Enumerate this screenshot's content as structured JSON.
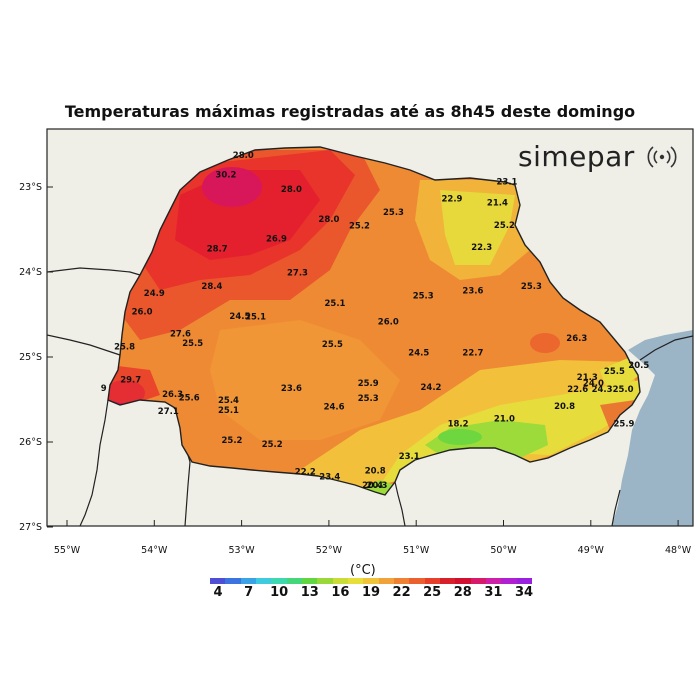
{
  "title": "Temperaturas máximas registradas até as 8h45 deste domingo",
  "logo": {
    "text": "simepar",
    "icon": "radio-waves-icon"
  },
  "map": {
    "lat_ticks": [
      "23°S",
      "24°S",
      "25°S",
      "26°S",
      "27°S"
    ],
    "lon_ticks": [
      "55°W",
      "54°W",
      "53°W",
      "52°W",
      "51°W",
      "50°W",
      "49°W",
      "48°W"
    ],
    "colors": {
      "ocean": "#9bb4c6",
      "land": "#efefe7",
      "state_hot": "#e8342a"
    }
  },
  "colorbar": {
    "unit": "(°C)",
    "ticks": [
      "4",
      "7",
      "10",
      "13",
      "16",
      "19",
      "22",
      "25",
      "28",
      "31",
      "34"
    ],
    "colors": [
      "#4f4fd6",
      "#3b73e0",
      "#3aa3e6",
      "#3ecbe0",
      "#3ed8b0",
      "#45d67a",
      "#62d640",
      "#9ad83a",
      "#c9dc38",
      "#e8de3a",
      "#f0c43a",
      "#f2a23a",
      "#ef8232",
      "#ea602e",
      "#e63f2a",
      "#d8202a",
      "#d0102e",
      "#d81a6a",
      "#cc20a8",
      "#b020d0",
      "#9a20e0"
    ]
  },
  "stations": [
    {
      "v": "28.0",
      "lon": -52.98,
      "lat": -22.66
    },
    {
      "v": "30.2",
      "lon": -53.18,
      "lat": -22.89
    },
    {
      "v": "28.0",
      "lon": -52.43,
      "lat": -23.06
    },
    {
      "v": "23.1",
      "lon": -49.96,
      "lat": -22.97
    },
    {
      "v": "22.9",
      "lon": -50.59,
      "lat": -23.17
    },
    {
      "v": "21.4",
      "lon": -50.07,
      "lat": -23.22
    },
    {
      "v": "25.3",
      "lon": -51.26,
      "lat": -23.33
    },
    {
      "v": "28.0",
      "lon": -52.0,
      "lat": -23.41
    },
    {
      "v": "25.2",
      "lon": -51.65,
      "lat": -23.49
    },
    {
      "v": "25.2",
      "lon": -49.99,
      "lat": -23.48
    },
    {
      "v": "26.9",
      "lon": -52.6,
      "lat": -23.64
    },
    {
      "v": "28.7",
      "lon": -53.28,
      "lat": -23.76
    },
    {
      "v": "22.3",
      "lon": -50.25,
      "lat": -23.74
    },
    {
      "v": "27.3",
      "lon": -52.36,
      "lat": -24.04
    },
    {
      "v": "28.4",
      "lon": -53.34,
      "lat": -24.2
    },
    {
      "v": "25.3",
      "lon": -49.68,
      "lat": -24.2
    },
    {
      "v": "24.9",
      "lon": -54.0,
      "lat": -24.28
    },
    {
      "v": "23.6",
      "lon": -50.35,
      "lat": -24.25
    },
    {
      "v": "25.3",
      "lon": -50.92,
      "lat": -24.31
    },
    {
      "v": "25.1",
      "lon": -51.93,
      "lat": -24.4
    },
    {
      "v": "26.0",
      "lon": -54.14,
      "lat": -24.5
    },
    {
      "v": "24.5",
      "lon": -53.02,
      "lat": -24.55
    },
    {
      "v": "25.1",
      "lon": -52.84,
      "lat": -24.56
    },
    {
      "v": "26.0",
      "lon": -51.32,
      "lat": -24.62
    },
    {
      "v": "27.6",
      "lon": -53.7,
      "lat": -24.76
    },
    {
      "v": "25.5",
      "lon": -53.56,
      "lat": -24.87
    },
    {
      "v": "25.5",
      "lon": -51.96,
      "lat": -24.88
    },
    {
      "v": "26.3",
      "lon": -49.16,
      "lat": -24.81
    },
    {
      "v": "25.8",
      "lon": -54.34,
      "lat": -24.91
    },
    {
      "v": "24.5",
      "lon": -50.97,
      "lat": -24.98
    },
    {
      "v": "22.7",
      "lon": -50.35,
      "lat": -24.98
    },
    {
      "v": "20.5",
      "lon": -48.45,
      "lat": -25.13
    },
    {
      "v": "25.5",
      "lon": -48.73,
      "lat": -25.2
    },
    {
      "v": "21.3",
      "lon": -49.04,
      "lat": -25.27
    },
    {
      "v": "29.7",
      "lon": -54.27,
      "lat": -25.3
    },
    {
      "v": "25.9",
      "lon": -51.55,
      "lat": -25.34
    },
    {
      "v": "24.0",
      "lon": -48.97,
      "lat": -25.34
    },
    {
      "v": "24.2",
      "lon": -50.83,
      "lat": -25.39
    },
    {
      "v": "22.6",
      "lon": -49.15,
      "lat": -25.41
    },
    {
      "v": "24.3",
      "lon": -48.87,
      "lat": -25.41
    },
    {
      "v": "25.0",
      "lon": -48.63,
      "lat": -25.41
    },
    {
      "v": "9",
      "lon": -54.58,
      "lat": -25.4
    },
    {
      "v": "23.6",
      "lon": -52.43,
      "lat": -25.4
    },
    {
      "v": "26.3",
      "lon": -53.79,
      "lat": -25.47
    },
    {
      "v": "25.6",
      "lon": -53.6,
      "lat": -25.51
    },
    {
      "v": "25.3",
      "lon": -51.55,
      "lat": -25.52
    },
    {
      "v": "25.4",
      "lon": -53.15,
      "lat": -25.54
    },
    {
      "v": "24.6",
      "lon": -51.94,
      "lat": -25.62
    },
    {
      "v": "20.8",
      "lon": -49.3,
      "lat": -25.61
    },
    {
      "v": "27.1",
      "lon": -53.84,
      "lat": -25.67
    },
    {
      "v": "25.1",
      "lon": -53.15,
      "lat": -25.66
    },
    {
      "v": "21.0",
      "lon": -49.99,
      "lat": -25.76
    },
    {
      "v": "25.9",
      "lon": -48.62,
      "lat": -25.82
    },
    {
      "v": "18.2",
      "lon": -50.52,
      "lat": -25.82
    },
    {
      "v": "25.2",
      "lon": -53.11,
      "lat": -26.01
    },
    {
      "v": "25.2",
      "lon": -52.65,
      "lat": -26.06
    },
    {
      "v": "23.1",
      "lon": -51.08,
      "lat": -26.2
    },
    {
      "v": "20.8",
      "lon": -51.47,
      "lat": -26.37
    },
    {
      "v": "22.2",
      "lon": -52.27,
      "lat": -26.38
    },
    {
      "v": "23.4",
      "lon": -51.99,
      "lat": -26.44
    },
    {
      "v": "20.4",
      "lon": -51.5,
      "lat": -26.54
    },
    {
      "v": "20.3",
      "lon": -51.45,
      "lat": -26.54
    }
  ]
}
